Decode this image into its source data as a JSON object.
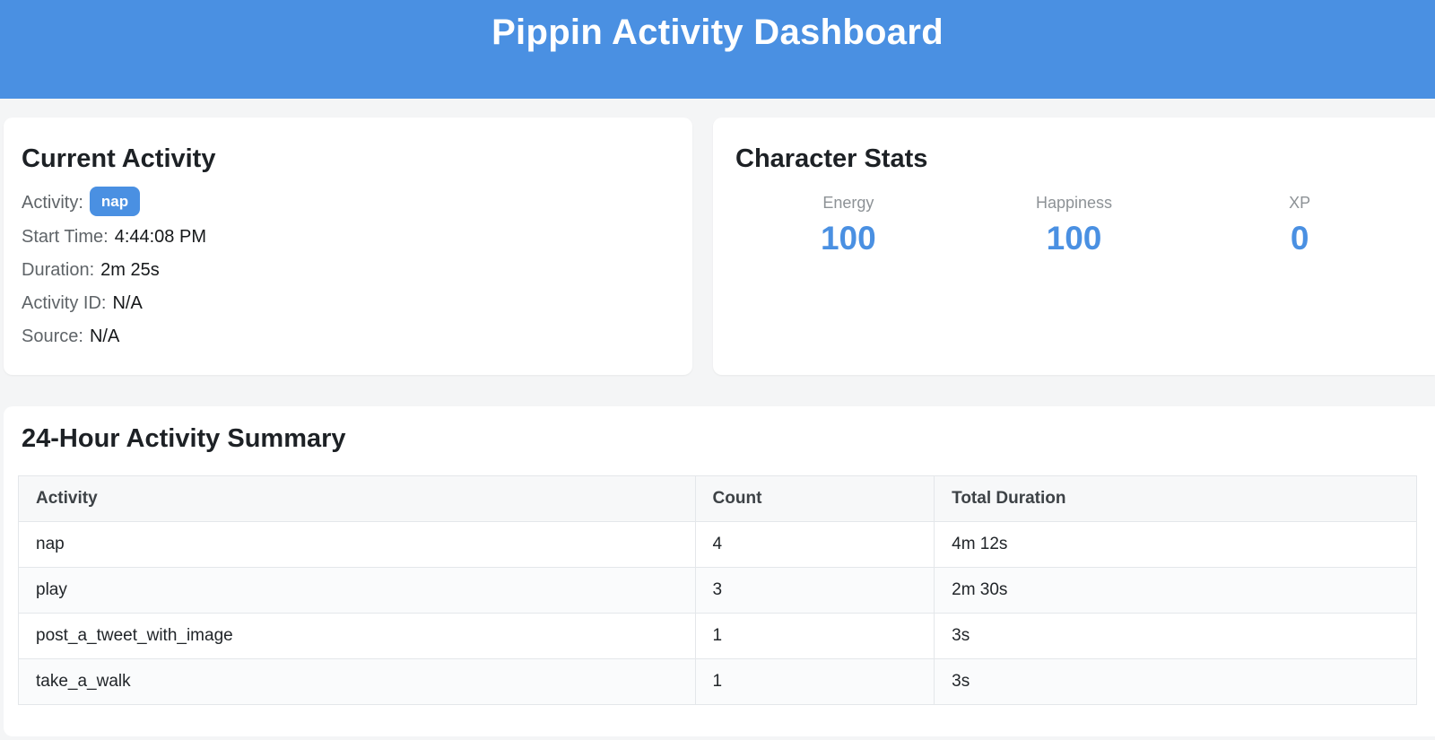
{
  "colors": {
    "accent_blue": "#4a90e2",
    "page_background": "#f4f5f6",
    "card_background": "#ffffff"
  },
  "header": {
    "title": "Pippin Activity Dashboard"
  },
  "current_activity": {
    "title": "Current Activity",
    "fields": [
      {
        "label": "Activity:",
        "value": "nap"
      },
      {
        "label": "Start Time:",
        "value": "4:44:08 PM"
      },
      {
        "label": "Duration:",
        "value": "2m 25s"
      },
      {
        "label": "Activity ID:",
        "value": "N/A"
      },
      {
        "label": "Source:",
        "value": "N/A"
      }
    ]
  },
  "character_stats": {
    "title": "Character Stats",
    "stats": [
      {
        "label": "Energy",
        "value": "100"
      },
      {
        "label": "Happiness",
        "value": "100"
      },
      {
        "label": "XP",
        "value": "0"
      }
    ]
  },
  "summary": {
    "title": "24-Hour Activity Summary",
    "table": {
      "columns": [
        "Activity",
        "Count",
        "Total Duration"
      ],
      "rows": [
        [
          "nap",
          "4",
          "4m 12s"
        ],
        [
          "play",
          "3",
          "2m 30s"
        ],
        [
          "post_a_tweet_with_image",
          "1",
          "3s"
        ],
        [
          "take_a_walk",
          "1",
          "3s"
        ]
      ]
    }
  }
}
